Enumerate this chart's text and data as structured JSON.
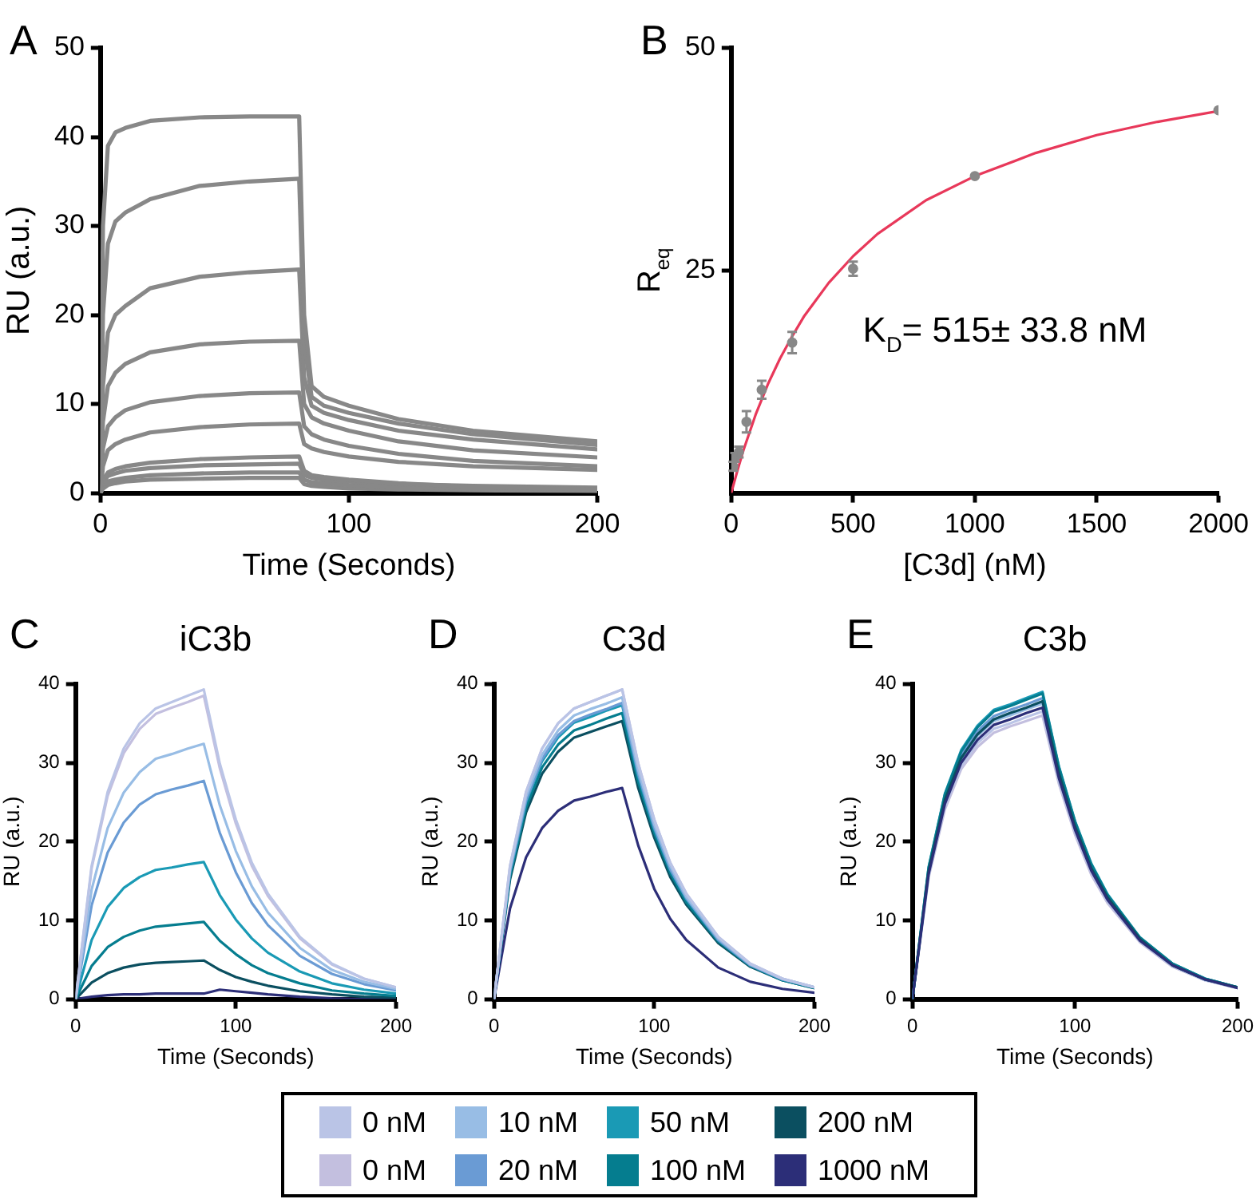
{
  "chart_data": [
    {
      "type": "line",
      "annotations": [
        "A"
      ],
      "xlabel": "Time (Seconds)",
      "ylabel": "RU (a.u.)",
      "xlim": [
        0,
        200
      ],
      "xticks": [
        0,
        100,
        200
      ],
      "ylim": [
        0,
        50
      ],
      "yticks": [
        0,
        10,
        20,
        30,
        40,
        50
      ],
      "grid": false,
      "legend": false,
      "marker": "none",
      "line_style": "solid",
      "x": [
        0,
        1,
        3,
        6,
        10,
        20,
        40,
        60,
        80,
        82,
        85,
        90,
        100,
        120,
        150,
        200
      ],
      "series": [
        {
          "color": "#888888",
          "values": [
            0,
            30,
            39,
            40.5,
            41,
            41.8,
            42.2,
            42.3,
            42.3,
            20,
            12,
            10.8,
            9.8,
            8.3,
            7,
            5.8
          ]
        },
        {
          "color": "#888888",
          "values": [
            0,
            20,
            28,
            30.5,
            31.5,
            33,
            34.5,
            35,
            35.3,
            17,
            10.8,
            9.8,
            9,
            7.8,
            6.6,
            5.4
          ]
        },
        {
          "color": "#888888",
          "values": [
            0,
            12,
            18,
            20,
            21,
            23,
            24.3,
            24.8,
            25.1,
            13,
            9.8,
            9,
            8.2,
            7,
            6,
            4.9
          ]
        },
        {
          "color": "#888888",
          "values": [
            0,
            8,
            12,
            13.5,
            14.5,
            15.8,
            16.7,
            17,
            17.1,
            10,
            8.5,
            7.8,
            7,
            5.8,
            4.8,
            4
          ]
        },
        {
          "color": "#888888",
          "values": [
            0,
            5,
            7.5,
            8.5,
            9.3,
            10.2,
            10.9,
            11.2,
            11.3,
            7.5,
            6.6,
            6,
            5.3,
            4.4,
            3.6,
            3
          ]
        },
        {
          "color": "#888888",
          "values": [
            0,
            3,
            4.8,
            5.5,
            6,
            6.8,
            7.4,
            7.7,
            7.8,
            5.5,
            5,
            4.6,
            4.1,
            3.5,
            3,
            2.6
          ]
        },
        {
          "color": "#888888",
          "values": [
            0,
            1.5,
            2.3,
            2.7,
            3,
            3.4,
            3.8,
            4,
            4.1,
            2.5,
            2,
            1.8,
            1.5,
            1.1,
            0.7,
            0.4
          ]
        },
        {
          "color": "#888888",
          "values": [
            0,
            1.2,
            1.9,
            2.2,
            2.5,
            2.8,
            3.1,
            3.2,
            3.3,
            2,
            1.7,
            1.5,
            1.3,
            1,
            0.8,
            0.6
          ]
        },
        {
          "color": "#888888",
          "values": [
            0,
            0.8,
            1.3,
            1.5,
            1.7,
            2,
            2.2,
            2.3,
            2.3,
            1.5,
            1.2,
            1.1,
            0.9,
            0.7,
            0.5,
            0.3
          ]
        },
        {
          "color": "#888888",
          "values": [
            0,
            0.5,
            0.9,
            1.1,
            1.3,
            1.5,
            1.6,
            1.7,
            1.7,
            1,
            0.8,
            0.7,
            0.5,
            0.4,
            0.3,
            0.2
          ]
        }
      ]
    },
    {
      "type": "scatter",
      "annotations": [
        "B",
        "K$_{D}$= 515± 33.8 nM"
      ],
      "xlabel": "[C3d] (nM)",
      "ylabel": "R$_{eq}$",
      "xlim": [
        0,
        2000
      ],
      "xticks": [
        0,
        500,
        1000,
        1500,
        2000
      ],
      "ylim": [
        0,
        50
      ],
      "yticks": [
        25,
        50
      ],
      "grid": false,
      "legend": false,
      "series": [
        {
          "type": "scatter",
          "marker": "circle",
          "color": "#888888",
          "x": [
            7.8,
            15.6,
            31.25,
            62.5,
            125,
            250,
            500,
            1000,
            2000
          ],
          "values": [
            3,
            4,
            4.6,
            8,
            11.6,
            16.9,
            25.2,
            35.6,
            43
          ],
          "errors": [
            0.5,
            0.5,
            0.6,
            1.2,
            1,
            1.2,
            0.8,
            null,
            null
          ]
        },
        {
          "type": "line",
          "marker": "none",
          "line_style": "solid",
          "color": "#e8385a",
          "x": [
            0,
            25,
            50,
            100,
            150,
            200,
            250,
            300,
            400,
            500,
            600,
            800,
            1000,
            1250,
            1500,
            1750,
            2000
          ],
          "values": [
            0,
            2.5,
            4.8,
            8.8,
            12.2,
            15.1,
            17.6,
            19.9,
            23.6,
            26.6,
            29.1,
            32.9,
            35.6,
            38.2,
            40.2,
            41.7,
            42.9
          ]
        }
      ]
    },
    {
      "type": "line",
      "title": "iC3b",
      "annotations": [
        "C"
      ],
      "xlabel": "Time (Seconds)",
      "ylabel": "RU (a.u.)",
      "xlim": [
        0,
        200
      ],
      "xticks": [
        0,
        100,
        200
      ],
      "ylim": [
        0,
        40
      ],
      "yticks": [
        0,
        10,
        20,
        30,
        40
      ],
      "grid": false,
      "legend": "bottom",
      "marker": "none",
      "line_style": "solid",
      "x": [
        0,
        10,
        20,
        30,
        40,
        50,
        60,
        70,
        80,
        90,
        100,
        110,
        120,
        140,
        160,
        180,
        200
      ],
      "series": [
        {
          "name": "0 nM",
          "color": "#bac4e6",
          "values": [
            0,
            16.9,
            26.3,
            31.8,
            35,
            36.9,
            37.7,
            38.5,
            39.3,
            29.9,
            22.8,
            17.3,
            13.4,
            7.9,
            4.5,
            2.6,
            1.5
          ]
        },
        {
          "name": "0 nM",
          "color": "#c3bfdf",
          "values": [
            0,
            16.6,
            25.8,
            31.2,
            34.3,
            36.2,
            37,
            37.7,
            38.5,
            29.3,
            22.3,
            16.9,
            13.1,
            7.7,
            4.4,
            2.6,
            1.5
          ]
        },
        {
          "name": "10 nM",
          "color": "#98bde5",
          "values": [
            0,
            13.9,
            21.7,
            26.2,
            28.8,
            30.5,
            31.1,
            31.8,
            32.4,
            24.6,
            18.8,
            14.3,
            11,
            6.5,
            3.7,
            2.2,
            1.3
          ]
        },
        {
          "name": "20 nM",
          "color": "#6a9bd4",
          "values": [
            0,
            11.9,
            18.6,
            22.4,
            24.7,
            26,
            26.6,
            27.1,
            27.7,
            21.1,
            16.1,
            12.2,
            9.4,
            5.5,
            3.2,
            1.9,
            1.1
          ]
        },
        {
          "name": "50 nM",
          "color": "#1a9ab5",
          "values": [
            0,
            7.5,
            11.7,
            14.1,
            15.5,
            16.4,
            16.7,
            17.1,
            17.4,
            13.2,
            10.1,
            7.7,
            5.9,
            3.5,
            2,
            1.2,
            0.7
          ]
        },
        {
          "name": "100 nM",
          "color": "#057d8f",
          "values": [
            0,
            4.2,
            6.6,
            7.9,
            8.7,
            9.2,
            9.4,
            9.6,
            9.8,
            7.4,
            5.7,
            4.3,
            3.3,
            2,
            1.1,
            0.7,
            0.4
          ]
        },
        {
          "name": "200 nM",
          "color": "#0b4f60",
          "values": [
            0,
            2.1,
            3.3,
            4,
            4.4,
            4.6,
            4.7,
            4.8,
            4.9,
            3.7,
            2.8,
            2.2,
            1.7,
            1,
            0.6,
            0.3,
            0.2
          ]
        },
        {
          "name": "1000 nM",
          "color": "#2c2e78",
          "values": [
            0,
            0.3,
            0.5,
            0.6,
            0.6,
            0.7,
            0.7,
            0.7,
            0.7,
            1.2,
            1,
            0.8,
            0.6,
            0.3,
            0.1,
            0,
            0
          ]
        }
      ]
    },
    {
      "type": "line",
      "title": "C3d",
      "annotations": [
        "D"
      ],
      "xlabel": "Time (Seconds)",
      "ylabel": "RU (a.u.)",
      "xlim": [
        0,
        200
      ],
      "xticks": [
        0,
        100,
        200
      ],
      "ylim": [
        0,
        40
      ],
      "yticks": [
        0,
        10,
        20,
        30,
        40
      ],
      "grid": false,
      "legend": false,
      "marker": "none",
      "line_style": "solid",
      "x": [
        0,
        10,
        20,
        30,
        40,
        50,
        60,
        70,
        80,
        90,
        100,
        110,
        120,
        140,
        160,
        180,
        200
      ],
      "series": [
        {
          "color": "#bac4e6",
          "values": [
            0,
            16.9,
            26.3,
            31.8,
            35,
            36.9,
            37.7,
            38.5,
            39.3,
            29.9,
            22.8,
            17.3,
            13.4,
            7.9,
            4.5,
            2.6,
            1.5
          ]
        },
        {
          "color": "#c3bfdf",
          "values": [
            0,
            16.9,
            26.3,
            31.8,
            35,
            36.9,
            37.7,
            38.5,
            39.3,
            29.9,
            22.8,
            17.3,
            13.4,
            7.9,
            4.5,
            2.6,
            1.5
          ]
        },
        {
          "color": "#98bde5",
          "values": [
            0,
            16.5,
            25.7,
            31,
            34.1,
            36,
            36.8,
            37.5,
            38.3,
            29.1,
            22.2,
            16.9,
            13,
            7.7,
            4.4,
            2.6,
            1.5
          ]
        },
        {
          "color": "#6a9bd4",
          "values": [
            0,
            16.2,
            25.2,
            30.5,
            33.5,
            35.3,
            36.1,
            36.8,
            37.6,
            28.6,
            21.8,
            16.5,
            12.8,
            7.5,
            4.3,
            2.5,
            1.5
          ]
        },
        {
          "color": "#1a9ab5",
          "values": [
            0,
            16,
            25,
            30.2,
            33.2,
            35.1,
            35.8,
            36.6,
            37.3,
            28.3,
            21.6,
            16.4,
            12.7,
            7.5,
            4.3,
            2.5,
            1.5
          ]
        },
        {
          "color": "#057d8f",
          "values": [
            0,
            15.6,
            24.3,
            29.4,
            32.3,
            34.1,
            34.8,
            35.6,
            36.3,
            27.6,
            21.1,
            16,
            12.3,
            7.3,
            4.2,
            2.4,
            1.4
          ]
        },
        {
          "color": "#0b4f60",
          "values": [
            0,
            15.2,
            23.7,
            28.6,
            31.4,
            33.2,
            33.9,
            34.6,
            35.3,
            26.8,
            20.5,
            15.5,
            12,
            7.1,
            4.1,
            2.4,
            1.4
          ]
        },
        {
          "color": "#2c2e78",
          "values": [
            0,
            11.5,
            18,
            21.7,
            23.9,
            25.2,
            25.7,
            26.3,
            26.8,
            19.5,
            14,
            10.2,
            7.5,
            4,
            2.2,
            1.3,
            0.8
          ]
        }
      ]
    },
    {
      "type": "line",
      "title": "C3b",
      "annotations": [
        "E"
      ],
      "xlabel": "Time (Seconds)",
      "ylabel": "RU (a.u.)",
      "xlim": [
        0,
        200
      ],
      "xticks": [
        0,
        100,
        200
      ],
      "ylim": [
        0,
        40
      ],
      "yticks": [
        0,
        10,
        20,
        30,
        40
      ],
      "grid": false,
      "legend": false,
      "marker": "none",
      "line_style": "solid",
      "x": [
        0,
        10,
        20,
        30,
        40,
        50,
        60,
        70,
        80,
        90,
        100,
        110,
        120,
        140,
        160,
        180,
        200
      ],
      "series": [
        {
          "color": "#2c2e78",
          "values": [
            0,
            15.9,
            24.8,
            30,
            32.9,
            34.8,
            35.5,
            36.3,
            37,
            28.1,
            21.5,
            16.3,
            12.6,
            7.4,
            4.3,
            2.5,
            1.4
          ]
        },
        {
          "color": "#0b4f60",
          "values": [
            0,
            16.3,
            25.3,
            30.6,
            33.6,
            35.5,
            36.3,
            37,
            37.8,
            28.7,
            21.9,
            16.6,
            12.9,
            7.6,
            4.3,
            2.5,
            1.5
          ]
        },
        {
          "color": "#057d8f",
          "values": [
            0,
            16.7,
            26,
            31.4,
            34.5,
            36.5,
            37.2,
            38,
            38.8,
            29.5,
            22.5,
            17.1,
            13.2,
            7.8,
            4.5,
            2.6,
            1.5
          ]
        },
        {
          "color": "#1a9ab5",
          "values": [
            0,
            16.8,
            26.1,
            31.6,
            34.7,
            36.7,
            37.4,
            38.2,
            39,
            29.6,
            22.6,
            17.2,
            13.3,
            7.8,
            4.5,
            2.6,
            1.5
          ]
        },
        {
          "color": "#6a9bd4",
          "values": [
            0,
            16.4,
            25.6,
            30.9,
            34,
            35.9,
            36.7,
            37.4,
            38.2,
            29,
            22.2,
            16.8,
            13,
            7.6,
            4.4,
            2.6,
            1.5
          ]
        },
        {
          "color": "#98bde5",
          "values": [
            0,
            16.1,
            25.1,
            30.4,
            33.4,
            35.3,
            36,
            36.8,
            37.5,
            28.5,
            21.8,
            16.5,
            12.8,
            7.5,
            4.3,
            2.5,
            1.5
          ]
        },
        {
          "color": "#bac4e6",
          "values": [
            0,
            15.7,
            24.5,
            29.6,
            32.5,
            34.3,
            35,
            35.8,
            36.5,
            27.7,
            21.2,
            16.1,
            12.4,
            7.3,
            4.2,
            2.4,
            1.4
          ]
        },
        {
          "color": "#c3bfdf",
          "values": [
            0,
            15.5,
            24.1,
            29.2,
            32,
            33.8,
            34.6,
            35.3,
            36,
            27.4,
            20.9,
            15.8,
            12.2,
            7.2,
            4.1,
            2.4,
            1.4
          ]
        }
      ]
    }
  ]
}
